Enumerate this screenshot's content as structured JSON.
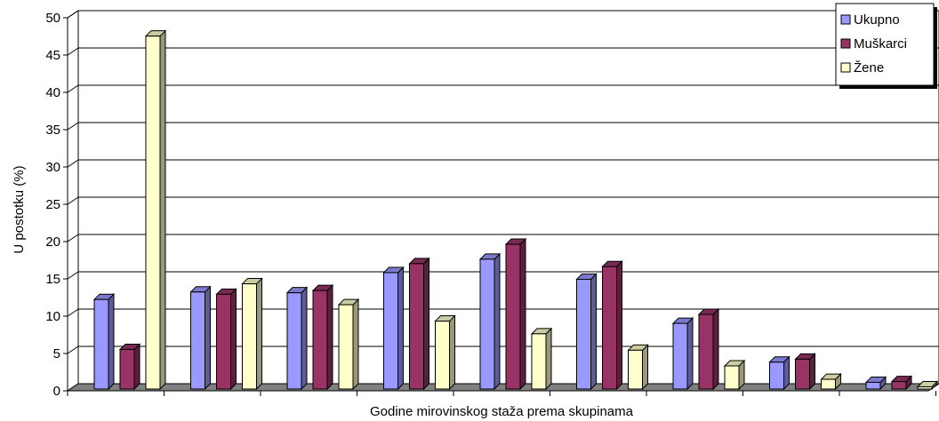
{
  "chart_data": {
    "type": "bar",
    "title": "",
    "xlabel": "Godine mirovinskog staža prema skupinama",
    "ylabel": "U postotku (%)",
    "ylim": [
      0,
      50
    ],
    "y_ticks": [
      0,
      5,
      10,
      15,
      20,
      25,
      30,
      35,
      40,
      45,
      50
    ],
    "grid": true,
    "legend_position": "top-right",
    "categories": [
      "",
      "",
      "",
      "",
      "",
      "",
      "",
      "",
      ""
    ],
    "series": [
      {
        "name": "Ukupno",
        "color": "#9999FF",
        "values": [
          12.0,
          13.0,
          12.9,
          15.6,
          17.4,
          14.7,
          8.8,
          3.6,
          0.9
        ]
      },
      {
        "name": "Muškarci",
        "color": "#993366",
        "values": [
          5.3,
          12.7,
          13.2,
          16.8,
          19.4,
          16.4,
          10.0,
          4.0,
          1.0
        ]
      },
      {
        "name": "Žene",
        "color": "#FFFFCC",
        "values": [
          47.3,
          14.1,
          11.3,
          9.1,
          7.4,
          5.2,
          3.1,
          1.3,
          0.3
        ]
      }
    ]
  }
}
